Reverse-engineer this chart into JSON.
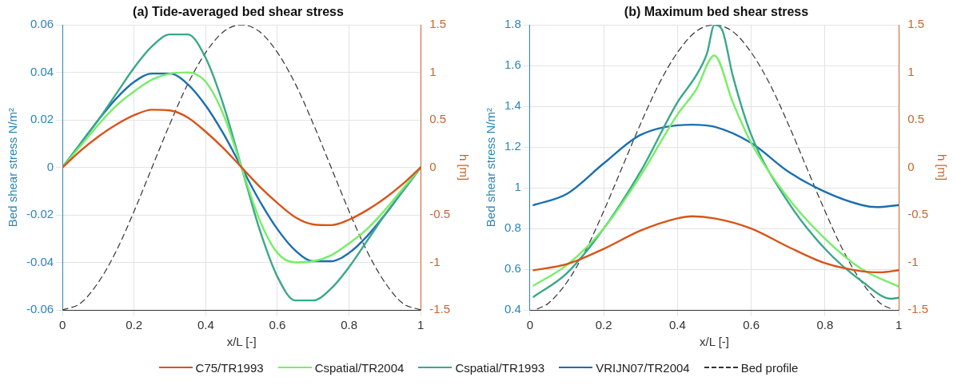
{
  "chart_data": [
    {
      "type": "line",
      "title": "(a) Tide-averaged bed shear stress",
      "xlabel": "x/L [-]",
      "ylabel": "Bed shear stress N/m²",
      "y2label": "h [m]",
      "xlim": [
        0,
        1
      ],
      "xticks": [
        0,
        0.2,
        0.4,
        0.6,
        0.8,
        1
      ],
      "ylim": [
        -0.06,
        0.06
      ],
      "yticks": [
        -0.06,
        -0.04,
        -0.02,
        0,
        0.02,
        0.04,
        0.06
      ],
      "y2lim": [
        -1.5,
        1.5
      ],
      "y2ticks": [
        -1.5,
        -1,
        -0.5,
        0,
        0.5,
        1,
        1.5
      ],
      "grid": true,
      "legend": "bottom",
      "marker": "none",
      "x": [
        0,
        0.05,
        0.1,
        0.15,
        0.2,
        0.25,
        0.3,
        0.35,
        0.4,
        0.45,
        0.5,
        0.55,
        0.6,
        0.65,
        0.7,
        0.75,
        0.8,
        0.85,
        0.9,
        0.95,
        1
      ],
      "series": [
        {
          "name": "C75/TR1993",
          "color": "#d95319",
          "values": [
            0,
            0.007,
            0.013,
            0.018,
            0.022,
            0.0243,
            0.024,
            0.021,
            0.015,
            0.008,
            0,
            -0.008,
            -0.015,
            -0.021,
            -0.024,
            -0.0243,
            -0.022,
            -0.018,
            -0.013,
            -0.007,
            0
          ]
        },
        {
          "name": "Cspatial/TR2004",
          "color": "#77ee66",
          "values": [
            0,
            0.009,
            0.018,
            0.026,
            0.032,
            0.037,
            0.0395,
            0.04,
            0.036,
            0.022,
            0,
            -0.022,
            -0.036,
            -0.04,
            -0.0395,
            -0.037,
            -0.032,
            -0.026,
            -0.018,
            -0.009,
            0
          ]
        },
        {
          "name": "Cspatial/TR1993",
          "color": "#3aa88a",
          "values": [
            0,
            0.01,
            0.02,
            0.031,
            0.042,
            0.051,
            0.056,
            0.056,
            0.046,
            0.026,
            0,
            -0.026,
            -0.046,
            -0.056,
            -0.056,
            -0.051,
            -0.042,
            -0.031,
            -0.02,
            -0.01,
            0
          ]
        },
        {
          "name": "VRIJN07/TR2004",
          "color": "#1a6fb0",
          "values": [
            0,
            0.01,
            0.02,
            0.029,
            0.036,
            0.0395,
            0.0395,
            0.035,
            0.026,
            0.014,
            0,
            -0.014,
            -0.026,
            -0.035,
            -0.0395,
            -0.0395,
            -0.036,
            -0.029,
            -0.02,
            -0.01,
            0
          ]
        },
        {
          "name": "Bed profile",
          "color": "#333333",
          "axis": "y2",
          "line_style": "dashed",
          "values": [
            -1.5,
            -1.43,
            -1.21,
            -0.88,
            -0.46,
            0,
            0.46,
            0.88,
            1.21,
            1.43,
            1.5,
            1.43,
            1.21,
            0.88,
            0.46,
            0,
            -0.46,
            -0.88,
            -1.21,
            -1.43,
            -1.5
          ]
        }
      ]
    },
    {
      "type": "line",
      "title": "(b) Maximum bed shear stress",
      "xlabel": "x/L [-]",
      "ylabel": "Bed shear stress N/m²",
      "y2label": "h [m]",
      "xlim": [
        0,
        1
      ],
      "xticks": [
        0,
        0.2,
        0.4,
        0.6,
        0.8,
        1
      ],
      "ylim": [
        0.4,
        1.8
      ],
      "yticks": [
        0.4,
        0.6,
        0.8,
        1,
        1.2,
        1.4,
        1.6,
        1.8
      ],
      "y2lim": [
        -1.5,
        1.5
      ],
      "y2ticks": [
        -1.5,
        -1,
        -0.5,
        0,
        0.5,
        1,
        1.5
      ],
      "grid": true,
      "marker": "none",
      "series": [
        {
          "color": "#d95319",
          "x": [
            0.01,
            0.1,
            0.2,
            0.3,
            0.4,
            0.44,
            0.5,
            0.6,
            0.7,
            0.8,
            0.9,
            0.95,
            1
          ],
          "values": [
            0.595,
            0.625,
            0.7,
            0.79,
            0.85,
            0.86,
            0.85,
            0.8,
            0.71,
            0.63,
            0.59,
            0.585,
            0.595
          ]
        },
        {
          "color": "#77ee66",
          "x": [
            0.01,
            0.1,
            0.2,
            0.3,
            0.4,
            0.45,
            0.5,
            0.55,
            0.6,
            0.7,
            0.8,
            0.9,
            1
          ],
          "values": [
            0.52,
            0.62,
            0.8,
            1.06,
            1.36,
            1.48,
            1.65,
            1.42,
            1.22,
            0.95,
            0.75,
            0.6,
            0.515
          ]
        },
        {
          "color": "#3aa88a",
          "x": [
            0.01,
            0.1,
            0.2,
            0.3,
            0.4,
            0.45,
            0.48,
            0.5,
            0.52,
            0.55,
            0.6,
            0.7,
            0.8,
            0.9,
            0.98,
            1
          ],
          "values": [
            0.465,
            0.58,
            0.8,
            1.08,
            1.42,
            1.55,
            1.66,
            1.8,
            1.78,
            1.55,
            1.26,
            0.93,
            0.7,
            0.54,
            0.455,
            0.46
          ]
        },
        {
          "color": "#1a6fb0",
          "x": [
            0.01,
            0.1,
            0.2,
            0.3,
            0.44,
            0.5,
            0.6,
            0.7,
            0.8,
            0.9,
            0.94,
            1
          ],
          "values": [
            0.915,
            0.97,
            1.12,
            1.26,
            1.31,
            1.3,
            1.22,
            1.08,
            0.98,
            0.915,
            0.905,
            0.915
          ]
        },
        {
          "color": "#333333",
          "axis": "y2",
          "line_style": "dashed",
          "x": [
            0.02,
            0.05,
            0.1,
            0.15,
            0.2,
            0.25,
            0.3,
            0.35,
            0.4,
            0.45,
            0.5,
            0.55,
            0.6,
            0.65,
            0.7,
            0.75,
            0.8,
            0.85,
            0.9,
            0.95,
            0.98
          ],
          "values": [
            -1.49,
            -1.43,
            -1.21,
            -0.88,
            -0.46,
            0,
            0.46,
            0.88,
            1.21,
            1.43,
            1.5,
            1.43,
            1.21,
            0.88,
            0.46,
            0,
            -0.46,
            -0.88,
            -1.21,
            -1.43,
            -1.49
          ]
        }
      ]
    }
  ]
}
